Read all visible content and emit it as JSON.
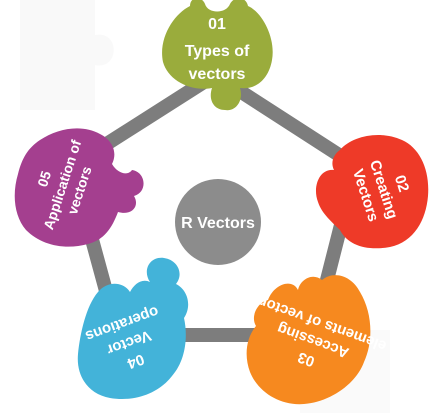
{
  "center": {
    "label": "R Vectors",
    "color": "#8c8c8c"
  },
  "frame_color": "#7d7d7d",
  "pieces": [
    {
      "number": "01",
      "line1": "Types of",
      "line2": "vectors",
      "color": "#9aac3c"
    },
    {
      "number": "02",
      "line1": "Creating",
      "line2": "Vectors",
      "color": "#ee3a28"
    },
    {
      "number": "03",
      "line1": "Accessing",
      "line2": "elements of vectors",
      "color": "#f6891f"
    },
    {
      "number": "04",
      "line1": "Vector",
      "line2": "operations",
      "color": "#43b3d9"
    },
    {
      "number": "05",
      "line1": "Application of",
      "line2": "vectors",
      "color": "#a43f8f"
    }
  ]
}
